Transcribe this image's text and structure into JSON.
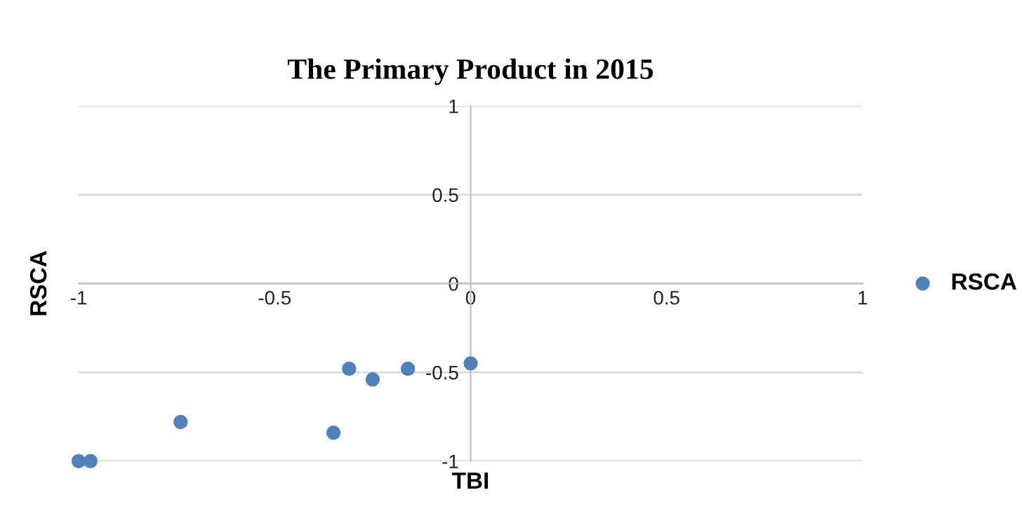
{
  "chart_data": {
    "type": "scatter",
    "title": "The Primary Product in 2015",
    "xlabel": "TBI",
    "ylabel": "RSCA",
    "series": [
      {
        "name": "RSCA",
        "color": "#4f81bd",
        "x": [
          -1.0,
          -0.97,
          -0.74,
          -0.35,
          -0.31,
          -0.25,
          -0.16,
          0.0
        ],
        "values": [
          -1.0,
          -1.0,
          -0.78,
          -0.84,
          -0.48,
          -0.54,
          -0.48,
          -0.45
        ]
      }
    ],
    "xlim": [
      -1,
      1
    ],
    "ylim": [
      -1,
      1
    ],
    "xticks": [
      -1,
      -0.5,
      0,
      0.5,
      1
    ],
    "yticks": [
      -1,
      -0.5,
      0,
      0.5,
      1
    ],
    "grid": "y",
    "legend": "right",
    "marker": "circle"
  }
}
